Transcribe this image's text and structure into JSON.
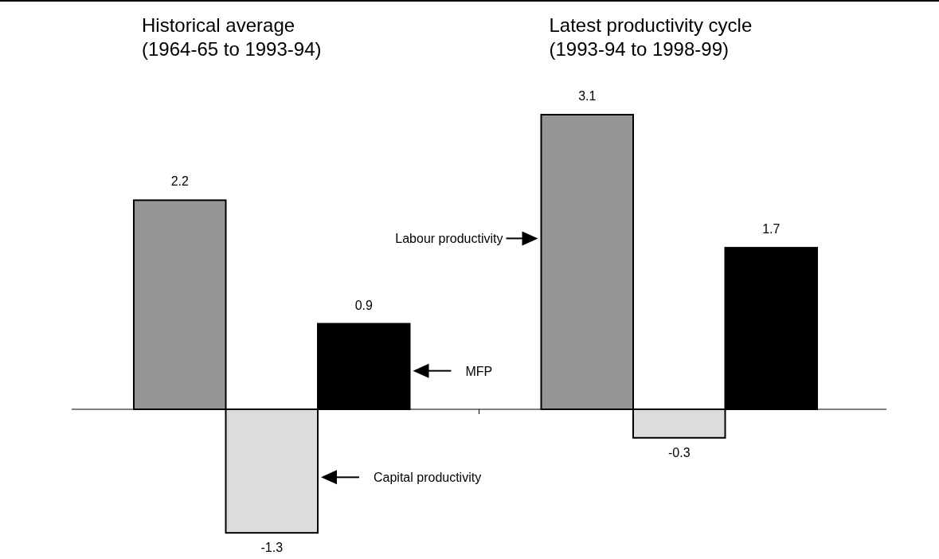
{
  "chart_data": {
    "type": "bar",
    "categories": [
      "Historical average\n(1964-65 to 1993-94)",
      "Latest productivity cycle\n(1993-94 to 1998-99)"
    ],
    "series": [
      {
        "name": "Labour productivity",
        "color": "#969696",
        "values": [
          2.2,
          3.1
        ]
      },
      {
        "name": "Capital productivity",
        "color": "#dcdcdc",
        "values": [
          -1.3,
          -0.3
        ]
      },
      {
        "name": "MFP",
        "color": "#000000",
        "values": [
          0.9,
          1.7
        ]
      }
    ],
    "data_labels": true,
    "legend": "bottom left",
    "tick_labels": "x"
  }
}
